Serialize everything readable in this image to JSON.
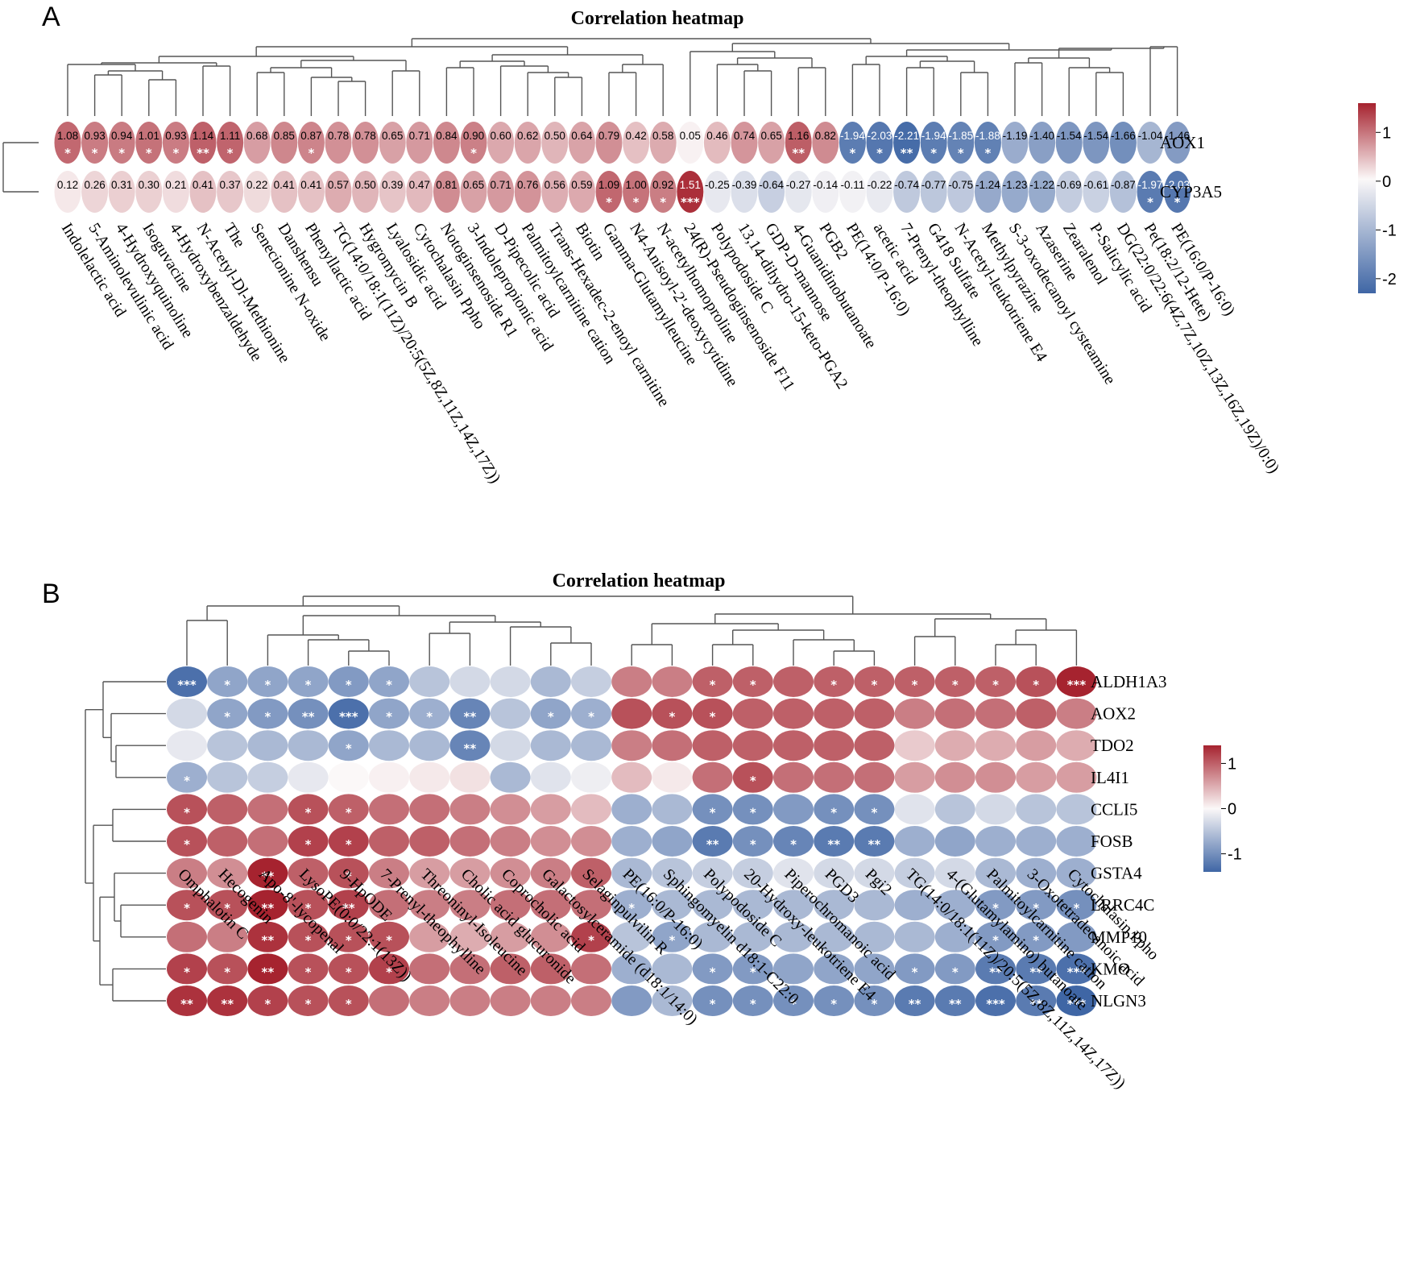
{
  "colors": {
    "neg": "#3f66a5",
    "mid": "#fbf8f8",
    "pos": "#a6232f"
  },
  "panels": [
    {
      "letter": "A",
      "chart_data": {
        "type": "heatmap",
        "title": "Correlation heatmap",
        "rows": [
          "AOX1",
          "CYP3A5"
        ],
        "columns": [
          "Indolelactic acid",
          "5-Aminolevulinic acid",
          "4-Hydroxyquinoline",
          "Isoguvacine",
          "4-Hydroxybenzaldehyde",
          "N-Acetyl-Dl-Methionine",
          "The",
          "Senecionine N-oxide",
          "Danshensu",
          "Phenyllactic acid",
          "TG(14:0/18:1(11Z)/20:5(5Z,8Z,11Z,14Z,17Z))",
          "Hygromycin B",
          "Lyalosidic acid",
          "Cytochalasin Ppho",
          "Notoginsenoside R1",
          "3-Indolepropionic acid",
          "D-Pipecolic acid",
          "Palmitoylcarnitine cation",
          "Trans-Hexadec-2-enoyl carnitine",
          "Biotin",
          "Gamma-Glutamylleucine",
          "N4-Anisoyl-2'-deoxycytidine",
          "N-acetylhomoproline",
          "24(R)-Pseudoginsenoside F11",
          "Polypodoside C",
          "13,14-dihydro-15-keto-PGA2",
          "GDP-D-mannose",
          "4-Guanidinobutanoate",
          "PGB2",
          "PE(14:0/P-16:0)",
          "acetic acid",
          "7-Prenyl-theophylline",
          "G418 Sulfate",
          "N-Acetyl-leukotriene E4",
          "Methylpyrazine",
          "S-3-oxodecanoyl cysteamine",
          "Azaserine",
          "Zearalenol",
          "P-Salicylic acid",
          "DG(22:0/22:6(4Z,7Z,10Z,13Z,16Z,19Z)/0:0)",
          "Pe(18:2/12-Hete)",
          "PE(16:0/P-16:0)"
        ],
        "values": [
          [
            1.08,
            0.93,
            0.94,
            1.01,
            0.93,
            1.14,
            1.11,
            0.68,
            0.85,
            0.87,
            0.78,
            0.78,
            0.65,
            0.71,
            0.84,
            0.9,
            0.6,
            0.62,
            0.5,
            0.64,
            0.79,
            0.42,
            0.58,
            0.05,
            0.46,
            0.74,
            0.65,
            1.16,
            0.82,
            -1.94,
            -2.03,
            -2.21,
            -1.94,
            -1.85,
            -1.88,
            -1.19,
            -1.4,
            -1.54,
            -1.54,
            -1.66,
            -1.04,
            -1.46
          ],
          [
            0.12,
            0.26,
            0.31,
            0.3,
            0.21,
            0.41,
            0.37,
            0.22,
            0.41,
            0.41,
            0.57,
            0.5,
            0.39,
            0.47,
            0.81,
            0.65,
            0.71,
            0.76,
            0.56,
            0.59,
            1.09,
            1.0,
            0.92,
            1.51,
            -0.25,
            -0.39,
            -0.64,
            -0.27,
            -0.14,
            -0.11,
            -0.22,
            -0.74,
            -0.77,
            -0.75,
            -1.24,
            -1.23,
            -1.22,
            -0.69,
            -0.61,
            -0.87,
            -1.97,
            -2.03
          ]
        ],
        "significance": [
          [
            "*",
            "*",
            "*",
            "*",
            "*",
            "**",
            "*",
            "",
            "",
            "*",
            "",
            "",
            "",
            "",
            "",
            "*",
            "",
            "",
            "",
            "",
            "",
            "",
            "",
            "",
            "",
            "",
            "",
            "**",
            "",
            "*",
            "*",
            "**",
            "*",
            "*",
            "*",
            "",
            "",
            "",
            "",
            "",
            "",
            ""
          ],
          [
            "",
            "",
            "",
            "",
            "",
            "",
            "",
            "",
            "",
            "",
            "",
            "",
            "",
            "",
            "",
            "",
            "",
            "",
            "",
            "",
            "*",
            "*",
            "*",
            "***",
            "",
            "",
            "",
            "",
            "",
            "",
            "",
            "",
            "",
            "",
            "",
            "",
            "",
            "",
            "",
            "",
            "*",
            "*"
          ]
        ],
        "show_values": true,
        "legend": {
          "ticks": [
            1,
            0,
            -1,
            -2
          ],
          "range": [
            -2.3,
            1.6
          ],
          "position": "right"
        }
      }
    },
    {
      "letter": "B",
      "chart_data": {
        "type": "heatmap",
        "title": "Correlation heatmap",
        "rows": [
          "ALDH1A3",
          "AOX2",
          "TDO2",
          "IL4I1",
          "CCLI5",
          "FOSB",
          "GSTA4",
          "LRRC4C",
          "MMP10",
          "KMO",
          "NLGN3"
        ],
        "columns": [
          "Omphalotin C",
          "Hecogenin",
          "Apo-8'-lycopenal",
          "LysoPE(0:0/22:1(13Z))",
          "9-HpODE",
          "7-Prenyl-theophylline",
          "Threoninyl-Isoleucine",
          "Cholic acid glucuronide",
          "Coprocholic acid",
          "Galactosylceramide (d18:1/14:0)",
          "Selaginpulvilin R",
          "PE(16:0/P-16:0)",
          "Sphingomyelin d18:1-C22:0",
          "Polypodoside C",
          "20-Hydroxy-leukotriene E4",
          "Piperochromanoic acid",
          "PGD3",
          "Pgi2",
          "TG(14:0/18:1(11Z)/20:5(5Z,8Z,11Z,14Z,17Z))",
          "4-(Glutamylamino) butanoate",
          "Palmitoylcarnitine cation",
          "3-Oxotetradecanoic acid",
          "Cytochalasin Ppho"
        ],
        "values": [
          [
            -1.3,
            -0.8,
            -0.8,
            -0.8,
            -0.9,
            -0.8,
            -0.5,
            -0.3,
            -0.3,
            -0.6,
            -0.4,
            0.8,
            0.8,
            1.0,
            1.0,
            1.0,
            1.0,
            1.0,
            1.0,
            1.0,
            1.0,
            1.1,
            1.4
          ],
          [
            -0.3,
            -0.8,
            -0.9,
            -1.0,
            -1.3,
            -0.8,
            -0.7,
            -1.1,
            -0.5,
            -0.8,
            -0.7,
            1.1,
            1.1,
            1.1,
            1.0,
            1.0,
            1.0,
            1.0,
            0.8,
            0.9,
            0.9,
            1.0,
            0.8
          ],
          [
            -0.15,
            -0.5,
            -0.6,
            -0.6,
            -0.8,
            -0.6,
            -0.6,
            -1.1,
            -0.3,
            -0.6,
            -0.6,
            0.8,
            0.9,
            1.0,
            1.0,
            1.0,
            1.0,
            1.0,
            0.3,
            0.5,
            0.5,
            0.6,
            0.5
          ],
          [
            -0.7,
            -0.5,
            -0.4,
            -0.15,
            0.0,
            0.05,
            0.1,
            0.15,
            -0.6,
            -0.2,
            -0.1,
            0.4,
            0.1,
            0.9,
            1.1,
            0.9,
            0.9,
            0.9,
            0.6,
            0.7,
            0.7,
            0.6,
            0.6
          ],
          [
            1.1,
            1.0,
            0.9,
            1.1,
            1.0,
            0.9,
            0.9,
            0.8,
            0.7,
            0.6,
            0.4,
            -0.7,
            -0.6,
            -1.0,
            -1.0,
            -0.9,
            -1.0,
            -1.0,
            -0.2,
            -0.5,
            -0.3,
            -0.5,
            -0.5
          ],
          [
            1.1,
            1.0,
            0.9,
            1.2,
            1.2,
            1.0,
            1.0,
            0.9,
            0.8,
            0.7,
            0.7,
            -0.7,
            -0.8,
            -1.2,
            -1.0,
            -1.1,
            -1.2,
            -1.2,
            -0.7,
            -0.8,
            -0.7,
            -0.7,
            -0.7
          ],
          [
            0.8,
            0.7,
            1.4,
            1.0,
            1.1,
            0.8,
            0.6,
            0.6,
            0.7,
            0.8,
            1.0,
            -0.6,
            -0.5,
            -0.4,
            -0.4,
            -0.2,
            -0.3,
            -0.3,
            -0.4,
            -0.3,
            -0.6,
            -0.7,
            -0.7
          ],
          [
            1.1,
            1.1,
            1.4,
            1.1,
            1.2,
            0.9,
            0.8,
            0.8,
            0.9,
            0.9,
            0.9,
            -0.7,
            -0.6,
            -0.6,
            -0.6,
            -0.6,
            -0.6,
            -0.6,
            -0.7,
            -0.7,
            -0.9,
            -0.9,
            -1.0
          ],
          [
            0.9,
            0.8,
            1.3,
            1.1,
            1.1,
            1.1,
            0.6,
            0.5,
            0.6,
            0.7,
            1.2,
            -0.5,
            -0.8,
            -0.6,
            -0.6,
            -0.6,
            -0.6,
            -0.6,
            -0.6,
            -0.7,
            -0.9,
            -0.9,
            -0.9
          ],
          [
            1.2,
            1.1,
            1.4,
            1.1,
            1.1,
            1.2,
            0.9,
            0.9,
            1.0,
            1.0,
            0.9,
            -0.7,
            -0.6,
            -0.9,
            -0.9,
            -0.8,
            -0.8,
            -0.8,
            -0.9,
            -0.9,
            -1.2,
            -1.2,
            -1.3
          ],
          [
            1.3,
            1.3,
            1.2,
            1.1,
            1.1,
            0.9,
            0.8,
            0.8,
            0.8,
            0.8,
            0.8,
            -0.9,
            -0.6,
            -1.0,
            -1.0,
            -1.0,
            -1.0,
            -1.0,
            -1.2,
            -1.2,
            -1.3,
            -1.2,
            -1.4
          ]
        ],
        "significance": [
          [
            "***",
            "*",
            "*",
            "*",
            "*",
            "*",
            "",
            "",
            "",
            "",
            "",
            "",
            "",
            "*",
            "*",
            "",
            "*",
            "*",
            "*",
            "*",
            "*",
            "*",
            "***"
          ],
          [
            "",
            "*",
            "*",
            "**",
            "***",
            "*",
            "*",
            "**",
            "",
            "*",
            "*",
            "",
            "*",
            "*",
            "",
            "",
            "",
            "",
            "",
            "",
            "",
            "",
            ""
          ],
          [
            "",
            "",
            "",
            "",
            "*",
            "",
            "",
            "**",
            "",
            "",
            "",
            "",
            "",
            "",
            "",
            "",
            "",
            "",
            "",
            "",
            "",
            "",
            ""
          ],
          [
            "*",
            "",
            "",
            "",
            "",
            "",
            "",
            "",
            "",
            "",
            "",
            "",
            "",
            "",
            "*",
            "",
            "",
            "",
            "",
            "",
            "",
            "",
            ""
          ],
          [
            "*",
            "",
            "",
            "*",
            "*",
            "",
            "",
            "",
            "",
            "",
            "",
            "",
            "",
            "*",
            "*",
            "",
            "*",
            "*",
            "",
            "",
            "",
            "",
            ""
          ],
          [
            "*",
            "",
            "",
            "*",
            "*",
            "",
            "",
            "",
            "",
            "",
            "",
            "",
            "",
            "**",
            "*",
            "*",
            "**",
            "**",
            "",
            "",
            "",
            "",
            ""
          ],
          [
            "",
            "",
            "**",
            "",
            "*",
            "",
            "",
            "",
            "",
            "",
            "",
            "",
            "",
            "",
            "",
            "",
            "",
            "",
            "",
            "",
            "",
            "",
            ""
          ],
          [
            "*",
            "*",
            "**",
            "*",
            "**",
            "",
            "",
            "",
            "",
            "",
            "",
            "*",
            "",
            "",
            "",
            "",
            "",
            "",
            "",
            "",
            "*",
            "*",
            "*"
          ],
          [
            "",
            "",
            "**",
            "*",
            "*",
            "*",
            "",
            "",
            "",
            "",
            "*",
            "",
            "*",
            "",
            "",
            "",
            "",
            "",
            "",
            "",
            "*",
            "*",
            ""
          ],
          [
            "*",
            "*",
            "**",
            "*",
            "*",
            "*",
            "",
            "",
            "",
            "",
            "",
            "",
            "",
            "*",
            "*",
            "",
            "",
            "",
            "*",
            "*",
            "**",
            "**",
            "***"
          ],
          [
            "**",
            "**",
            "*",
            "*",
            "*",
            "",
            "",
            "",
            "",
            "",
            "",
            "",
            "",
            "*",
            "*",
            "*",
            "*",
            "*",
            "**",
            "**",
            "***",
            "**",
            "***"
          ]
        ],
        "show_values": false,
        "legend": {
          "ticks": [
            1,
            0,
            -1
          ],
          "range": [
            -1.4,
            1.4
          ],
          "position": "right"
        }
      }
    }
  ]
}
